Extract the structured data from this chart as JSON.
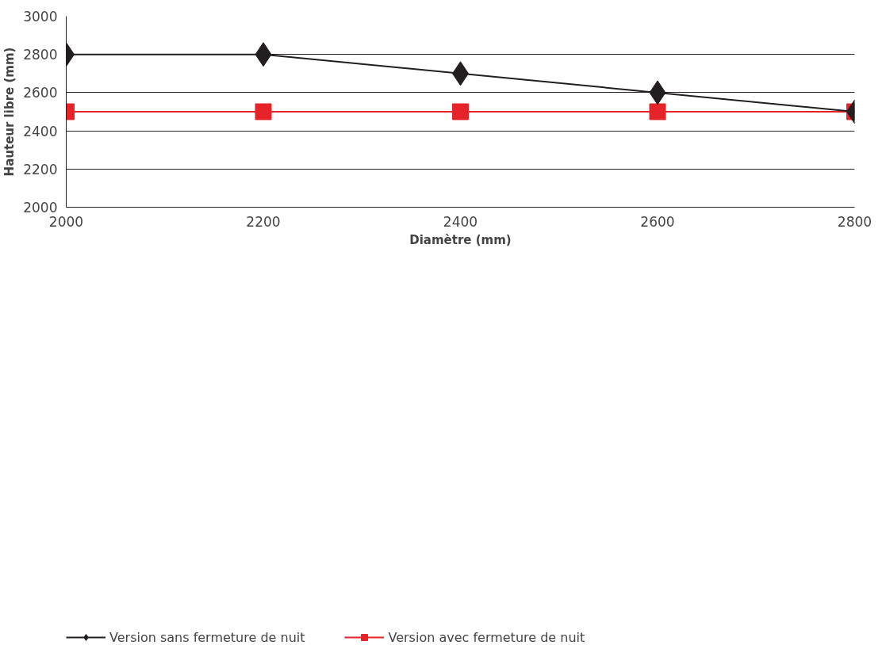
{
  "chart_data": {
    "type": "line",
    "xlabel": "Diamètre (mm)",
    "ylabel": "Hauteur libre (mm)",
    "x": [
      2000,
      2200,
      2400,
      2600,
      2800
    ],
    "series": [
      {
        "name": "Version sans fermeture de nuit",
        "color": "#231f20",
        "marker": "diamond",
        "values": [
          2800,
          2800,
          2700,
          2600,
          2500
        ]
      },
      {
        "name": "Version avec fermeture de nuit",
        "color": "#e52329",
        "marker": "square",
        "values": [
          2500,
          2500,
          2500,
          2500,
          2500
        ]
      }
    ],
    "xlim": [
      2000,
      2800
    ],
    "xticks": [
      2000,
      2200,
      2400,
      2600,
      2800
    ],
    "ylim": [
      2000,
      3000
    ],
    "yticks": [
      2000,
      2200,
      2400,
      2600,
      2800,
      3000
    ],
    "grid": "y",
    "legend": "bottom",
    "line_style": "solid"
  }
}
